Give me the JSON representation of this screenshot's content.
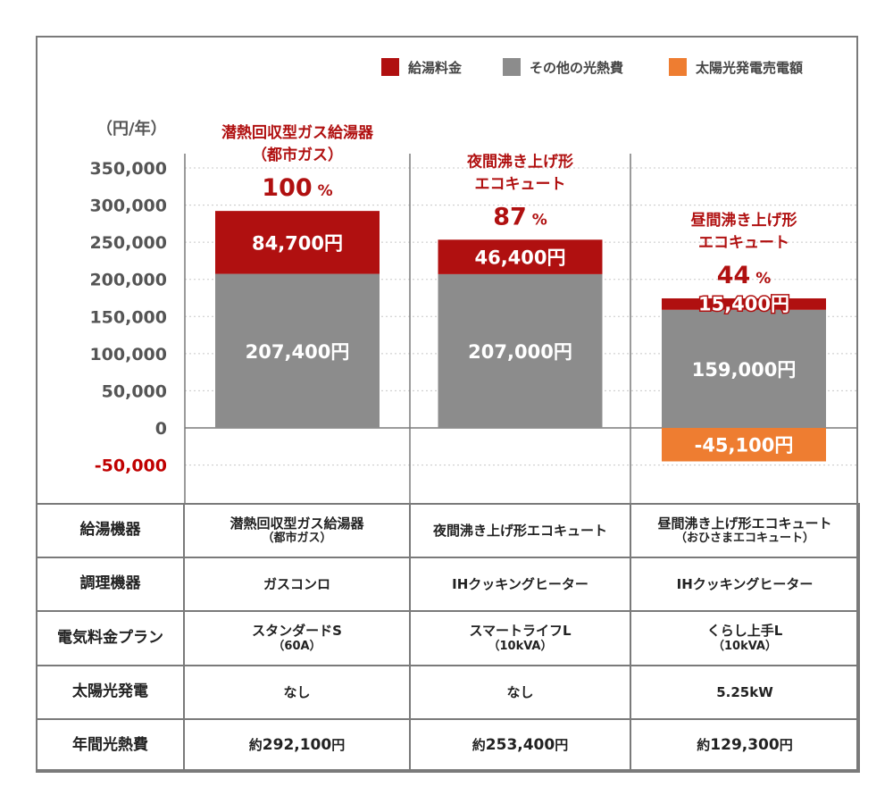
{
  "legend": [
    {
      "label": "給湯料金",
      "color": "#b01010"
    },
    {
      "label": "その他の光熱費",
      "color": "#8c8c8c"
    },
    {
      "label": "太陽光発電売電額",
      "color": "#ee7d31"
    }
  ],
  "chart_data": {
    "type": "bar",
    "stacked": true,
    "unit_label": "（円/年）",
    "y_ticks": [
      "350,000",
      "300,000",
      "250,000",
      "200,000",
      "150,000",
      "100,000",
      "50,000",
      "0",
      "-50,000"
    ],
    "ylim": [
      -50000,
      350000
    ],
    "grid": true,
    "legend_position": "top-right",
    "categories": [
      {
        "title_lines": [
          "潜熱回収型ガス給湯器",
          "（都市ガス）"
        ],
        "percent": "100",
        "percent_unit": "%"
      },
      {
        "title_lines": [
          "夜間沸き上げ形",
          "エコキュート"
        ],
        "percent": "87",
        "percent_unit": "%"
      },
      {
        "title_lines": [
          "昼間沸き上げ形",
          "エコキュート"
        ],
        "percent": "44",
        "percent_unit": "%"
      }
    ],
    "series": [
      {
        "name": "その他の光熱費",
        "color": "#8c8c8c",
        "values": [
          207400,
          207000,
          159000
        ],
        "labels": [
          "207,400円",
          "207,000円",
          "159,000円"
        ]
      },
      {
        "name": "給湯料金",
        "color": "#b01010",
        "values": [
          84700,
          46400,
          15400
        ],
        "labels": [
          "84,700円",
          "46,400円",
          "15,400円"
        ]
      },
      {
        "name": "太陽光発電売電額",
        "color": "#ee7d31",
        "values": [
          0,
          0,
          -45100
        ],
        "labels": [
          "",
          "",
          "-45,100円"
        ]
      }
    ]
  },
  "table": {
    "rows": [
      {
        "header": "給湯機器",
        "cells": [
          [
            "潜熱回収型ガス給湯器",
            "（都市ガス）"
          ],
          [
            "夜間沸き上げ形エコキュート"
          ],
          [
            "昼間沸き上げ形エコキュート",
            "（おひさまエコキュート）"
          ]
        ]
      },
      {
        "header": "調理機器",
        "cells": [
          [
            "ガスコンロ"
          ],
          [
            "IHクッキングヒーター"
          ],
          [
            "IHクッキングヒーター"
          ]
        ]
      },
      {
        "header": "電気料金プラン",
        "cells": [
          [
            "スタンダードS",
            "（60A）"
          ],
          [
            "スマートライフL",
            "（10kVA）"
          ],
          [
            "くらし上手L",
            "（10kVA）"
          ]
        ]
      },
      {
        "header": "太陽光発電",
        "cells": [
          [
            "なし"
          ],
          [
            "なし"
          ],
          [
            "5.25kW"
          ]
        ]
      }
    ],
    "total": {
      "header": "年間光熱費",
      "prefix": "約",
      "values": [
        "292,100",
        "253,400",
        "129,300"
      ],
      "suffix": "円"
    }
  }
}
